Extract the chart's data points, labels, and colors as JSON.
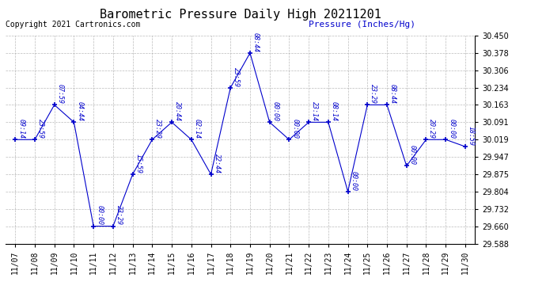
{
  "title": "Barometric Pressure Daily High 20211201",
  "ylabel": "Pressure (Inches/Hg)",
  "copyright": "Copyright 2021 Cartronics.com",
  "line_color": "#0000cc",
  "background_color": "#ffffff",
  "grid_color": "#aaaaaa",
  "ylim": [
    29.588,
    30.45
  ],
  "yticks": [
    29.588,
    29.66,
    29.732,
    29.804,
    29.875,
    29.947,
    30.019,
    30.091,
    30.163,
    30.234,
    30.306,
    30.378,
    30.45
  ],
  "dates": [
    "11/07",
    "11/08",
    "11/09",
    "11/10",
    "11/11",
    "11/12",
    "11/13",
    "11/14",
    "11/15",
    "11/16",
    "11/17",
    "11/18",
    "11/19",
    "11/20",
    "11/21",
    "11/22",
    "11/23",
    "11/24",
    "11/25",
    "11/26",
    "11/27",
    "11/28",
    "11/29",
    "11/30"
  ],
  "values": [
    30.019,
    30.019,
    30.163,
    30.091,
    29.66,
    29.66,
    29.875,
    30.019,
    30.091,
    30.019,
    29.875,
    30.234,
    30.378,
    30.091,
    30.019,
    30.091,
    30.091,
    29.804,
    30.163,
    30.163,
    29.91,
    30.019,
    30.019,
    29.99
  ],
  "annotations": [
    {
      "idx": 0,
      "label": "09:14"
    },
    {
      "idx": 1,
      "label": "23:59"
    },
    {
      "idx": 2,
      "label": "07:59"
    },
    {
      "idx": 3,
      "label": "04:44"
    },
    {
      "idx": 4,
      "label": "00:00"
    },
    {
      "idx": 5,
      "label": "23:29"
    },
    {
      "idx": 6,
      "label": "15:59"
    },
    {
      "idx": 7,
      "label": "23:29"
    },
    {
      "idx": 8,
      "label": "20:44"
    },
    {
      "idx": 9,
      "label": "02:14"
    },
    {
      "idx": 10,
      "label": "22:44"
    },
    {
      "idx": 11,
      "label": "23:59"
    },
    {
      "idx": 12,
      "label": "08:44"
    },
    {
      "idx": 13,
      "label": "00:00"
    },
    {
      "idx": 14,
      "label": "00:00"
    },
    {
      "idx": 15,
      "label": "23:14"
    },
    {
      "idx": 16,
      "label": "08:14"
    },
    {
      "idx": 17,
      "label": "00:00"
    },
    {
      "idx": 18,
      "label": "23:29"
    },
    {
      "idx": 19,
      "label": "08:44"
    },
    {
      "idx": 20,
      "label": "00:00"
    },
    {
      "idx": 21,
      "label": "20:29"
    },
    {
      "idx": 22,
      "label": "00:00"
    },
    {
      "idx": 23,
      "label": "18:59"
    }
  ],
  "title_fontsize": 11,
  "tick_fontsize": 7,
  "annotation_fontsize": 6,
  "copyright_fontsize": 7,
  "ylabel_fontsize": 8
}
